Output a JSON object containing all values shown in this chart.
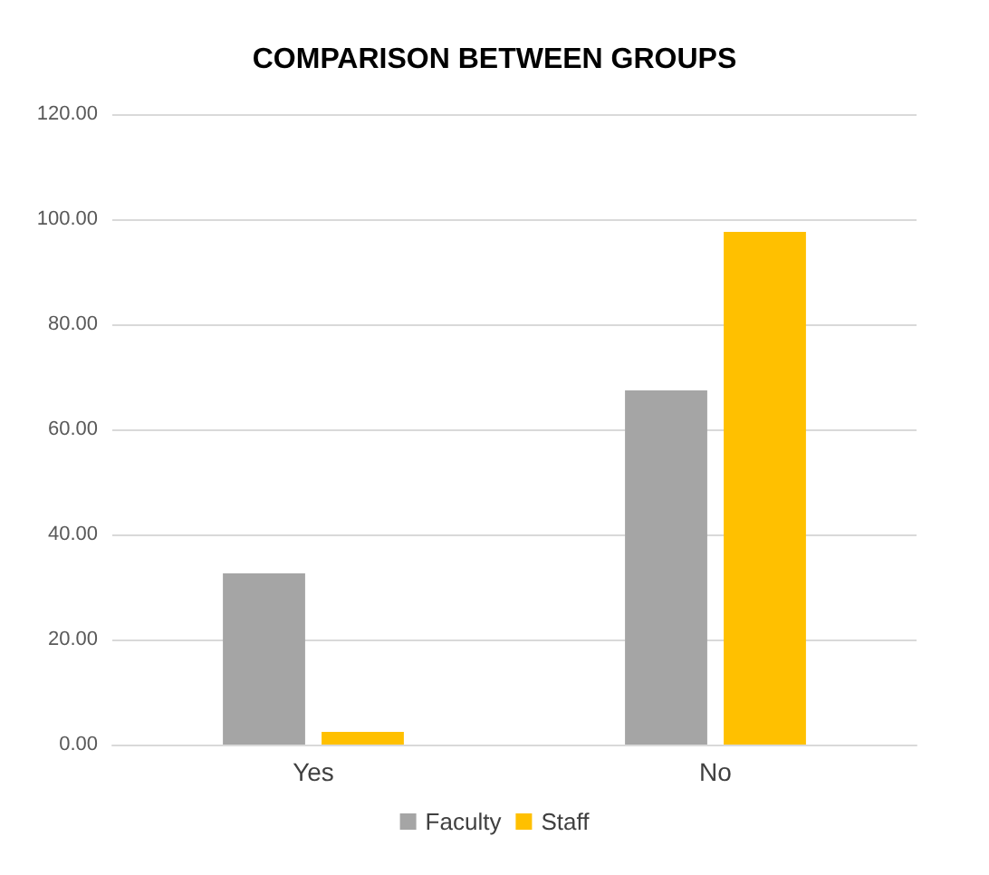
{
  "chart_data": {
    "type": "bar",
    "title": "COMPARISON BETWEEN GROUPS",
    "categories": [
      "Yes",
      "No"
    ],
    "series": [
      {
        "name": "Faculty",
        "color": "#a5a5a5",
        "values": [
          32.6,
          67.4
        ]
      },
      {
        "name": "Staff",
        "color": "#ffc000",
        "values": [
          2.4,
          97.6
        ]
      }
    ],
    "ylim": [
      0,
      120
    ],
    "yticks": [
      {
        "value": 0,
        "label": "0.00"
      },
      {
        "value": 20,
        "label": "20.00"
      },
      {
        "value": 40,
        "label": "40.00"
      },
      {
        "value": 60,
        "label": "60.00"
      },
      {
        "value": 80,
        "label": "80.00"
      },
      {
        "value": 100,
        "label": "100.00"
      },
      {
        "value": 120,
        "label": "120.00"
      }
    ],
    "grid": "y",
    "legend": "bottom"
  }
}
